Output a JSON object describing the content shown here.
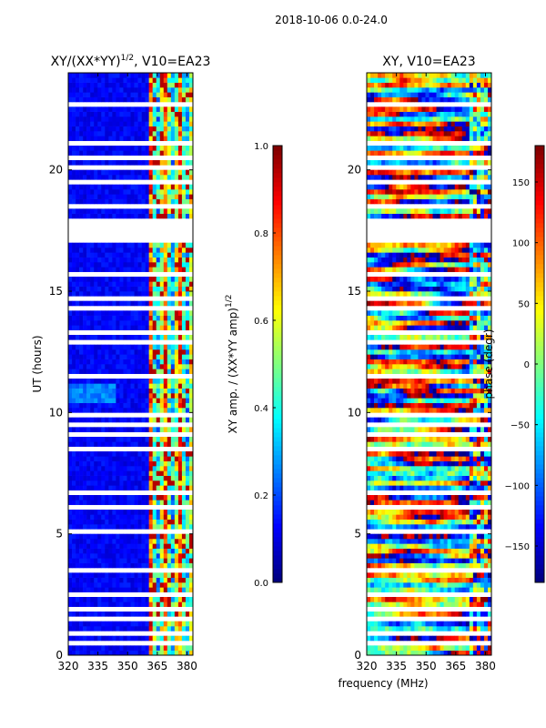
{
  "figure_title": "2018-10-06 0.0-24.0",
  "chart_data": [
    {
      "type": "heatmap",
      "panel": "left",
      "title_prefix": "XY/(XX*YY)",
      "title_exponent": "1/2",
      "title_suffix": ", V10=EA23",
      "xlabel": "",
      "ylabel": "UT (hours)",
      "xlim": [
        320,
        383
      ],
      "ylim": [
        0,
        24
      ],
      "xticks": [
        320,
        335,
        350,
        365,
        380
      ],
      "yticks": [
        0,
        5,
        10,
        15,
        20
      ],
      "colorbar": {
        "label_main": "XY amp. / (XX*YY amp)",
        "label_exponent": "1/2",
        "range": [
          0.0,
          1.0
        ],
        "ticks": [
          "0.0",
          "0.2",
          "0.4",
          "0.6",
          "0.8",
          "1.0"
        ],
        "tick_values": [
          0.0,
          0.2,
          0.4,
          0.6,
          0.8,
          1.0
        ]
      },
      "colormap": "jet",
      "description_values": {
        "low_freq_band_MHz": [
          320,
          361
        ],
        "low_freq_level": 0.08,
        "high_freq_band_MHz": [
          361,
          383
        ],
        "high_freq_level_range": [
          0.3,
          1.0
        ]
      }
    },
    {
      "type": "heatmap",
      "panel": "right",
      "title": "XY, V10=EA23",
      "xlabel": "frequency (MHz)",
      "ylabel": "",
      "xlim": [
        320,
        383
      ],
      "ylim": [
        0,
        24
      ],
      "xticks": [
        320,
        335,
        350,
        365,
        380
      ],
      "yticks": [
        0,
        5,
        10,
        15,
        20
      ],
      "colorbar": {
        "label": "phase (degr)",
        "range": [
          -180,
          180
        ],
        "ticks": [
          "−150",
          "−100",
          "−50",
          "0",
          "50",
          "100",
          "150"
        ],
        "tick_values": [
          -150,
          -100,
          -50,
          0,
          50,
          100,
          150
        ]
      },
      "colormap": "jet"
    }
  ],
  "flagged_hours": [
    [
      0.4,
      0.55
    ],
    [
      0.85,
      0.95
    ],
    [
      1.4,
      1.6
    ],
    [
      1.9,
      2.0
    ],
    [
      2.5,
      2.65
    ],
    [
      3.4,
      3.5
    ],
    [
      3.95,
      4.05
    ],
    [
      4.55,
      4.65
    ],
    [
      5.05,
      5.15
    ],
    [
      5.55,
      5.6
    ],
    [
      6.05,
      6.15
    ],
    [
      6.6,
      6.7
    ],
    [
      7.35,
      7.45
    ],
    [
      8.05,
      8.1
    ],
    [
      8.45,
      8.55
    ],
    [
      9.0,
      9.1
    ],
    [
      9.45,
      9.5
    ],
    [
      9.85,
      9.95
    ],
    [
      10.3,
      10.35
    ],
    [
      10.75,
      10.85
    ],
    [
      11.5,
      11.6
    ],
    [
      11.95,
      12.0
    ],
    [
      12.35,
      12.45
    ],
    [
      12.85,
      12.9
    ],
    [
      13.3,
      13.35
    ],
    [
      13.75,
      13.85
    ],
    [
      14.25,
      14.3
    ],
    [
      14.7,
      14.8
    ],
    [
      15.2,
      15.25
    ],
    [
      15.65,
      15.75
    ],
    [
      16.15,
      16.25
    ],
    [
      17.1,
      17.95
    ],
    [
      18.45,
      18.55
    ],
    [
      19.0,
      19.05
    ],
    [
      19.45,
      19.55
    ],
    [
      20.05,
      20.1
    ],
    [
      20.45,
      20.55
    ],
    [
      21.05,
      21.15
    ],
    [
      21.55,
      21.6
    ],
    [
      22.1,
      22.2
    ],
    [
      22.6,
      22.7
    ],
    [
      23.15,
      23.2
    ],
    [
      23.6,
      23.65
    ]
  ]
}
